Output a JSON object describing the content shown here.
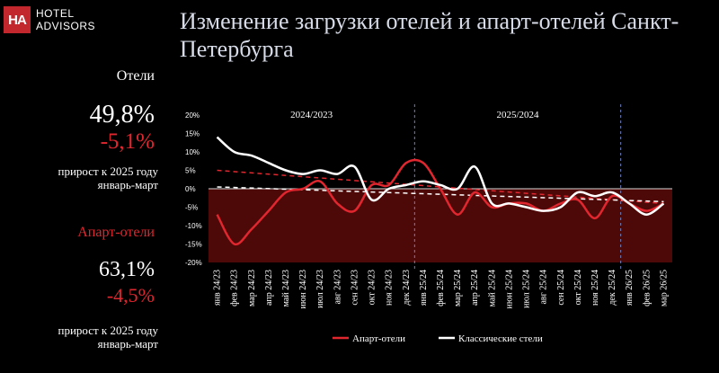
{
  "brand": {
    "logo_mark": "HA",
    "line1": "HOTEL",
    "line2": "ADVISORS"
  },
  "title": "Изменение загрузки отелей и апарт-отелей Санкт-Петербурга",
  "hotels": {
    "label": "Отели",
    "value": "49,8%",
    "change": "-5,1%",
    "note": "прирост к 2025 году январь-март"
  },
  "apart": {
    "label": "Апарт-отели",
    "value": "63,1%",
    "change": "-4,5%",
    "note": "прирост к 2025 году январь-март"
  },
  "colors": {
    "red": "#e0262e",
    "brand_red": "#c1272d",
    "background": "#000000",
    "fill": "#4d0808",
    "divider": "#7080c0"
  },
  "chart_data": {
    "type": "line",
    "x": [
      "янв 24/23",
      "фев 24/23",
      "мар 24/23",
      "апр 24/23",
      "май 24/23",
      "июн 24/23",
      "июл 24/23",
      "авг 24/23",
      "сен 24/23",
      "окт 24/23",
      "ноя 24/23",
      "дек 24/23",
      "янв 25/24",
      "фев 25/24",
      "мар 25/24",
      "апр 25/24",
      "май 25/24",
      "июн 25/24",
      "июл 25/24",
      "авг 25/24",
      "сен 25/24",
      "окт 25/24",
      "ноя 25/24",
      "дек 25/24",
      "янв 26/25",
      "фев 26/25",
      "мар 26/25"
    ],
    "series": [
      {
        "name": "Апарт-отели",
        "color": "#e0262e",
        "values": [
          -7,
          -15,
          -11,
          -6,
          -1,
          0,
          2,
          -4,
          -6,
          1,
          1,
          7,
          7,
          0,
          -7,
          -1,
          -5,
          -4,
          -4,
          -6,
          -4,
          -3,
          -8,
          -2,
          -4,
          -6,
          -4
        ]
      },
      {
        "name": "Классические стели",
        "color": "#ffffff",
        "values": [
          14,
          10,
          9,
          7,
          5,
          4,
          5,
          4,
          6,
          -3,
          0,
          1,
          2,
          1,
          0,
          6,
          -4,
          -4,
          -5,
          -6,
          -5,
          -1,
          -2,
          -1,
          -4,
          -7,
          -4
        ]
      }
    ],
    "trend_lines": [
      {
        "series": "Апарт-отели",
        "from": 5,
        "to": -4,
        "style": "dashed"
      },
      {
        "series": "Классические стели",
        "from": 0.5,
        "to": -3.5,
        "style": "dashed"
      }
    ],
    "periods": [
      {
        "label": "2024/2023",
        "start": "янв 24/23",
        "end": "дек 24/23"
      },
      {
        "label": "2025/2024",
        "start": "янв 25/24",
        "end": "дек 25/24"
      }
    ],
    "yticks": [
      "20%",
      "15%",
      "10%",
      "5%",
      "0%",
      "-5%",
      "-10%",
      "-15%",
      "-20%"
    ],
    "ylim": [
      -20,
      20
    ],
    "negative_area_fill": "dark red",
    "legend_position": "bottom"
  }
}
